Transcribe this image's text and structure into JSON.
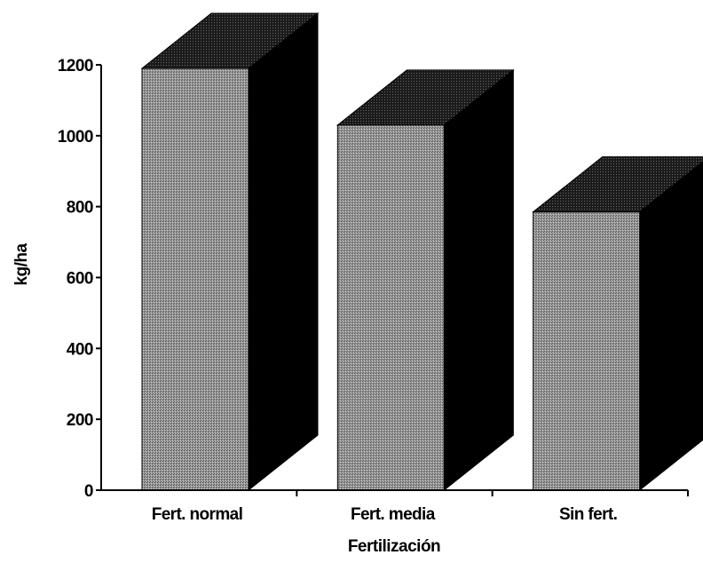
{
  "chart_data": {
    "type": "bar",
    "style": "3d",
    "title": "",
    "xlabel": "Fertilización",
    "ylabel": "kg/ha",
    "categories": [
      "Fert. normal",
      "Fert. media",
      "Sin fert."
    ],
    "values": [
      1190,
      1030,
      785
    ],
    "ylim": [
      0,
      1200
    ],
    "yticks": [
      0,
      200,
      400,
      600,
      800,
      1000,
      1200
    ],
    "grid": false,
    "legend": "none",
    "colors": {
      "bar_front": "#8f8f8f",
      "bar_side": "#000000",
      "bar_top": "#1a1a1a",
      "axis": "#000000"
    }
  }
}
